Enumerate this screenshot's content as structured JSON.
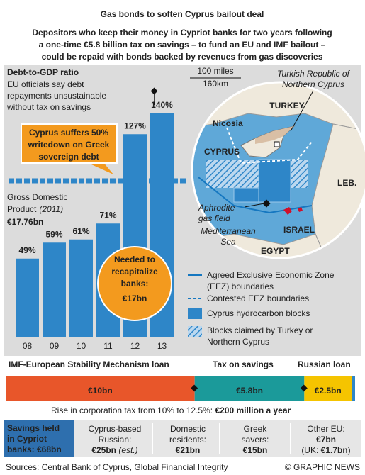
{
  "header": {
    "title": "Gas bonds to soften Cyprus bailout deal",
    "subtitle": [
      "Depositors who keep their money in Cypriot banks for two years following",
      "a one-time €5.8 billion tax on savings – to fund an EU and IMF bailout –",
      "could be repaid with bonds backed by revenues from gas discoveries"
    ]
  },
  "chart_data": {
    "type": "bar",
    "title": "Debt-to-GDP ratio",
    "note": [
      "EU officials say debt",
      "repayments unsustainable",
      "without tax on savings"
    ],
    "categories": [
      "08",
      "09",
      "10",
      "11",
      "12",
      "13"
    ],
    "values": [
      49,
      59,
      61,
      71,
      127,
      140
    ],
    "value_labels": [
      "49%",
      "59%",
      "61%",
      "71%",
      "127%",
      "140%"
    ],
    "color": "#2e86c8",
    "ylim": [
      0,
      140
    ]
  },
  "writedown": [
    "Cyprus suffers 50%",
    "writedown on Greek",
    "sovereign debt"
  ],
  "gdp": {
    "lines": [
      "Gross Domestic",
      "Product"
    ],
    "year": "(2011)",
    "value": "€17.76bn"
  },
  "recap": [
    "Needed to",
    "recapitalize",
    "banks:",
    "€17bn"
  ],
  "map": {
    "scale": [
      "100 miles",
      "160km"
    ],
    "trnc": [
      "Turkish Republic of",
      "Northern Cyprus"
    ],
    "turkey": "TURKEY",
    "nicosia": "Nicosia",
    "cyprus": "CYPRUS",
    "leb": "LEB.",
    "aphrodite": [
      "Aphrodite",
      "gas field"
    ],
    "israel": "ISRAEL",
    "sea": [
      "Mediterranean",
      "Sea"
    ],
    "egypt": "EGYPT"
  },
  "legend": [
    [
      "Agreed Exclusive Economic Zone",
      "(EEZ) boundaries"
    ],
    [
      "Contested EEZ boundaries"
    ],
    [
      "Cyprus hydrocarbon blocks"
    ],
    [
      "Blocks claimed by Turkey or",
      "Northern Cyprus"
    ]
  ],
  "funding": {
    "segments": [
      {
        "name": "IMF-European Stability Mechanism loan",
        "value": 10,
        "value_label": "€10bn",
        "color": "#e8562a"
      },
      {
        "name": "Tax on savings",
        "value": 5.8,
        "value_label": "€5.8bn",
        "color": "#1b9a9a"
      },
      {
        "name": "Russian loan",
        "value": 2.5,
        "value_label": "€2.5bn",
        "color": "#f5c400"
      }
    ],
    "note": "Rise in corporation tax from 10% to 12.5%: ",
    "note_value": "€200 million a year"
  },
  "savings": {
    "head": [
      "Savings held",
      "in Cypriot",
      "banks: €68bn"
    ],
    "cells": [
      {
        "lines": [
          "Cyprus-based",
          "Russian:"
        ],
        "value": "€25bn",
        "extra": " (est.)"
      },
      {
        "lines": [
          "Domestic",
          "residents:"
        ],
        "value": "€21bn"
      },
      {
        "lines": [
          "Greek",
          "savers:"
        ],
        "value": "€15bn"
      },
      {
        "lines": [
          "Other EU:"
        ],
        "value": "€7bn",
        "extra2": [
          "(UK: ",
          "€1.7bn",
          ")"
        ]
      }
    ]
  },
  "footer": {
    "source": "Sources: Central Bank of Cyprus, Global Financial Integrity",
    "credit": "© GRAPHIC NEWS"
  }
}
